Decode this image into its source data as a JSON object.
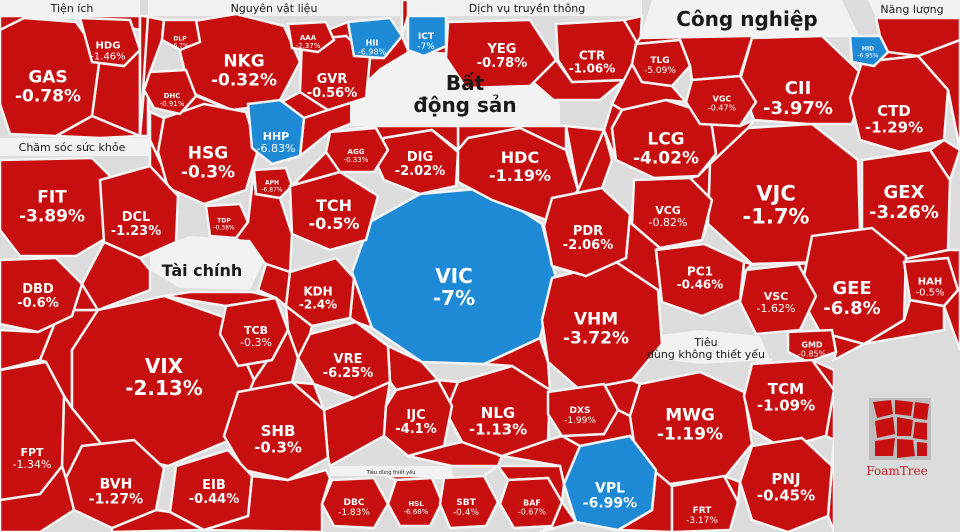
{
  "chart_data": {
    "type": "treemap",
    "title": "",
    "colors": {
      "down": "#c80f0f",
      "floor": "#1e8ad6"
    },
    "sectors": [
      {
        "name": "Tiện ích",
        "stocks": [
          {
            "ticker": "GAS",
            "change": "-0.78%"
          },
          {
            "ticker": "HDG",
            "change": "-1.46%"
          }
        ]
      },
      {
        "name": "Nguyên vật liệu",
        "stocks": [
          {
            "ticker": "NKG",
            "change": "-0.32%"
          },
          {
            "ticker": "HSG",
            "change": "-0.3%"
          },
          {
            "ticker": "GVR",
            "change": "-0.56%"
          },
          {
            "ticker": "HHP",
            "change": "-6.83%"
          },
          {
            "ticker": "HII",
            "change": "-6.98%"
          },
          {
            "ticker": "DHC",
            "change": "-0.91%"
          },
          {
            "ticker": "DLP",
            "change": "-6.7%"
          },
          {
            "ticker": "AAA",
            "change": "-2.37%"
          },
          {
            "ticker": "TDP",
            "change": "-0.38%"
          },
          {
            "ticker": "APH",
            "change": "-6.87%"
          }
        ]
      },
      {
        "name": "Dịch vụ truyền thông",
        "stocks": [
          {
            "ticker": "YEG",
            "change": "-0.78%"
          },
          {
            "ticker": "CTR",
            "change": "-1.06%"
          },
          {
            "ticker": "ICT",
            "change": "-7%"
          }
        ]
      },
      {
        "name": "Công nghiệp",
        "stocks": [
          {
            "ticker": "VJC",
            "change": "-1.7%"
          },
          {
            "ticker": "CII",
            "change": "-3.97%"
          },
          {
            "ticker": "GEX",
            "change": "-3.26%"
          },
          {
            "ticker": "GEE",
            "change": "-6.8%"
          },
          {
            "ticker": "LCG",
            "change": "-4.02%"
          },
          {
            "ticker": "CTD",
            "change": "-1.29%"
          },
          {
            "ticker": "VCG",
            "change": "-0.82%"
          },
          {
            "ticker": "PC1",
            "change": "-0.46%"
          },
          {
            "ticker": "VSC",
            "change": "-1.62%"
          },
          {
            "ticker": "VGC",
            "change": "-0.47%"
          },
          {
            "ticker": "TLG",
            "change": "-5.09%"
          },
          {
            "ticker": "HID",
            "change": "-6.95%"
          },
          {
            "ticker": "GMD",
            "change": "-0.85%"
          },
          {
            "ticker": "HAH",
            "change": "-0.5%"
          }
        ]
      },
      {
        "name": "Năng lượng",
        "stocks": []
      },
      {
        "name": "Chăm sóc sức khỏe",
        "stocks": [
          {
            "ticker": "FIT",
            "change": "-3.89%"
          },
          {
            "ticker": "DCL",
            "change": "-1.23%"
          },
          {
            "ticker": "DBD",
            "change": "-0.6%"
          }
        ]
      },
      {
        "name": "Bất động sản",
        "stocks": [
          {
            "ticker": "VIC",
            "change": "-7%"
          },
          {
            "ticker": "VHM",
            "change": "-3.72%"
          },
          {
            "ticker": "HDC",
            "change": "-1.19%"
          },
          {
            "ticker": "PDR",
            "change": "-2.06%"
          },
          {
            "ticker": "DIG",
            "change": "-2.02%"
          },
          {
            "ticker": "TCH",
            "change": "-0.5%"
          },
          {
            "ticker": "KDH",
            "change": "-2.4%"
          },
          {
            "ticker": "VRE",
            "change": "-6.25%"
          },
          {
            "ticker": "NLG",
            "change": "-1.13%"
          },
          {
            "ticker": "IJC",
            "change": "-4.1%"
          },
          {
            "ticker": "DXS",
            "change": "-1.99%"
          },
          {
            "ticker": "AGG",
            "change": "-0.33%"
          }
        ]
      },
      {
        "name": "Tài chính",
        "stocks": [
          {
            "ticker": "VIX",
            "change": "-2.13%"
          },
          {
            "ticker": "SHB",
            "change": "-0.3%"
          },
          {
            "ticker": "TCB",
            "change": "-0.3%"
          },
          {
            "ticker": "BVH",
            "change": "-1.27%"
          },
          {
            "ticker": "EIB",
            "change": "-0.44%"
          },
          {
            "ticker": "FPT",
            "change": "-1.34%"
          }
        ]
      },
      {
        "name": "Tiêu dùng không thiết yếu",
        "stocks": [
          {
            "ticker": "MWG",
            "change": "-1.19%"
          },
          {
            "ticker": "TCM",
            "change": "-1.09%"
          },
          {
            "ticker": "PNJ",
            "change": "-0.45%"
          },
          {
            "ticker": "VPL",
            "change": "-6.99%"
          },
          {
            "ticker": "FRT",
            "change": "-3.17%"
          }
        ]
      },
      {
        "name": "Tiêu dùng thiết yếu",
        "stocks": [
          {
            "ticker": "DBC",
            "change": "-1.83%"
          },
          {
            "ticker": "HSL",
            "change": "-6.68%"
          },
          {
            "ticker": "SBT",
            "change": "-0.4%"
          },
          {
            "ticker": "BAF",
            "change": "-0.67%"
          }
        ]
      }
    ]
  },
  "branding": {
    "logo_text": "FoamTree"
  }
}
